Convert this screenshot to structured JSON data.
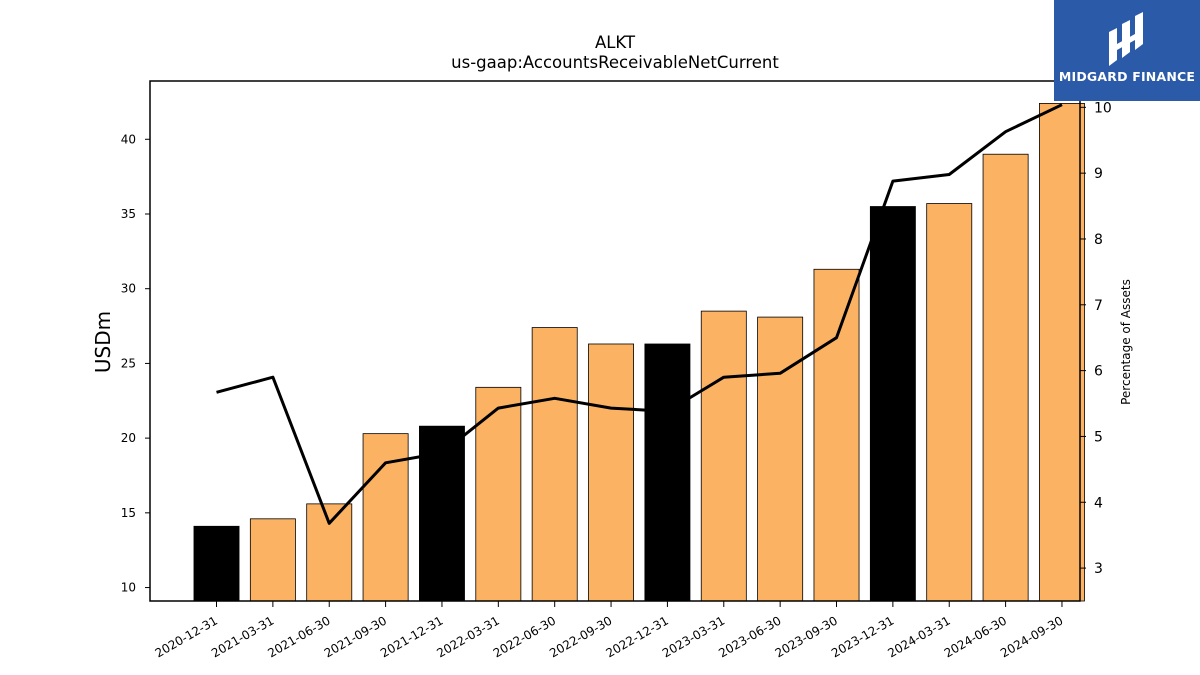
{
  "chart_data": {
    "type": "bar",
    "title": "ALKT",
    "subtitle": "us-gaap:AccountsReceivableNetCurrent",
    "ylabel": "USDm",
    "y2label": "Percentage of Assets",
    "categories": [
      "2020-12-31",
      "2021-03-31",
      "2021-06-30",
      "2021-09-30",
      "2021-12-31",
      "2022-03-31",
      "2022-06-30",
      "2022-09-30",
      "2022-12-31",
      "2023-03-31",
      "2023-06-30",
      "2023-09-30",
      "2023-12-31",
      "2024-03-31",
      "2024-06-30",
      "2024-09-30"
    ],
    "values": [
      14.1,
      14.6,
      15.6,
      20.3,
      20.8,
      23.4,
      27.4,
      26.3,
      26.3,
      28.5,
      28.1,
      31.3,
      35.5,
      35.7,
      39.0,
      42.4
    ],
    "bar_colors": [
      "#000000",
      "#fbb363",
      "#fbb363",
      "#fbb363",
      "#000000",
      "#fbb363",
      "#fbb363",
      "#fbb363",
      "#000000",
      "#fbb363",
      "#fbb363",
      "#fbb363",
      "#000000",
      "#fbb363",
      "#fbb363",
      "#fbb363"
    ],
    "line_series": {
      "values": [
        5.67,
        5.9,
        3.68,
        4.6,
        4.75,
        5.43,
        5.58,
        5.43,
        5.38,
        5.9,
        5.96,
        6.5,
        8.88,
        8.98,
        9.63,
        10.04
      ],
      "color": "#000000"
    },
    "ylim": [
      9.1,
      43.9
    ],
    "y2lim": [
      2.5,
      10.4
    ],
    "yticks": [
      10,
      15,
      20,
      25,
      30,
      35,
      40
    ],
    "y2ticks": [
      3,
      4,
      5,
      6,
      7,
      8,
      9,
      10
    ],
    "grid": false,
    "legend": "none"
  },
  "logo": {
    "text": "MIDGARD FINANCE",
    "background": "#2a5aa8"
  }
}
